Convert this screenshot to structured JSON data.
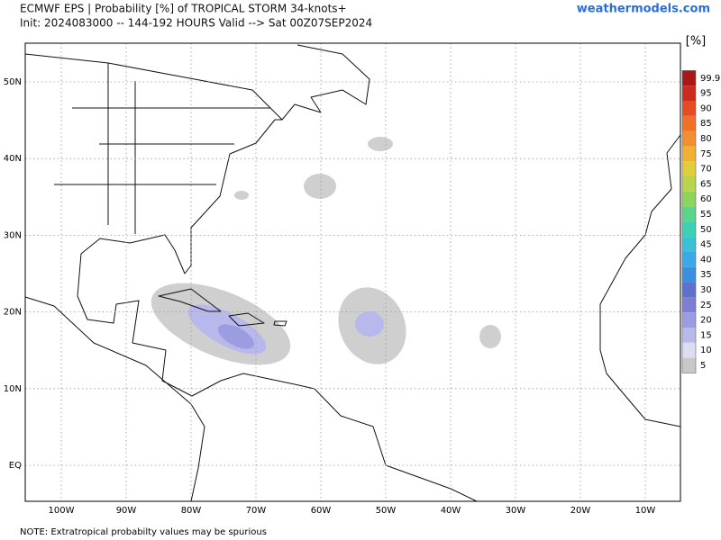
{
  "header": {
    "title": "ECMWF EPS | Probability [%] of TROPICAL STORM 34-knots+",
    "subtitle": "Init: 2024083000 -- 144-192 HOURS Valid --> Sat 00Z07SEP2024",
    "brand": "weathermodels.com"
  },
  "map": {
    "lon_labels": [
      "100W",
      "90W",
      "80W",
      "70W",
      "60W",
      "50W",
      "40W",
      "30W",
      "20W",
      "10W"
    ],
    "lat_labels": [
      "50N",
      "40N",
      "30N",
      "20N",
      "10N",
      "EQ"
    ]
  },
  "colorbar": {
    "unit": "[%]",
    "levels": [
      5,
      10,
      15,
      20,
      25,
      30,
      35,
      40,
      45,
      50,
      55,
      60,
      65,
      70,
      75,
      80,
      85,
      90,
      95,
      99.9
    ],
    "colors": [
      "#c8c8c8",
      "#dcdcf2",
      "#babaea",
      "#9c9ce0",
      "#7e7ed2",
      "#5e72cc",
      "#3c8ee0",
      "#3ca8e8",
      "#3cc0d8",
      "#3cd0b4",
      "#5cd48c",
      "#8cd45c",
      "#b8d44c",
      "#e0cc3c",
      "#f0b034",
      "#f09030",
      "#f07028",
      "#e44c24",
      "#cc2c20",
      "#a81818"
    ]
  },
  "footer": {
    "note": "NOTE: Extratropical probabilty values may be spurious"
  }
}
